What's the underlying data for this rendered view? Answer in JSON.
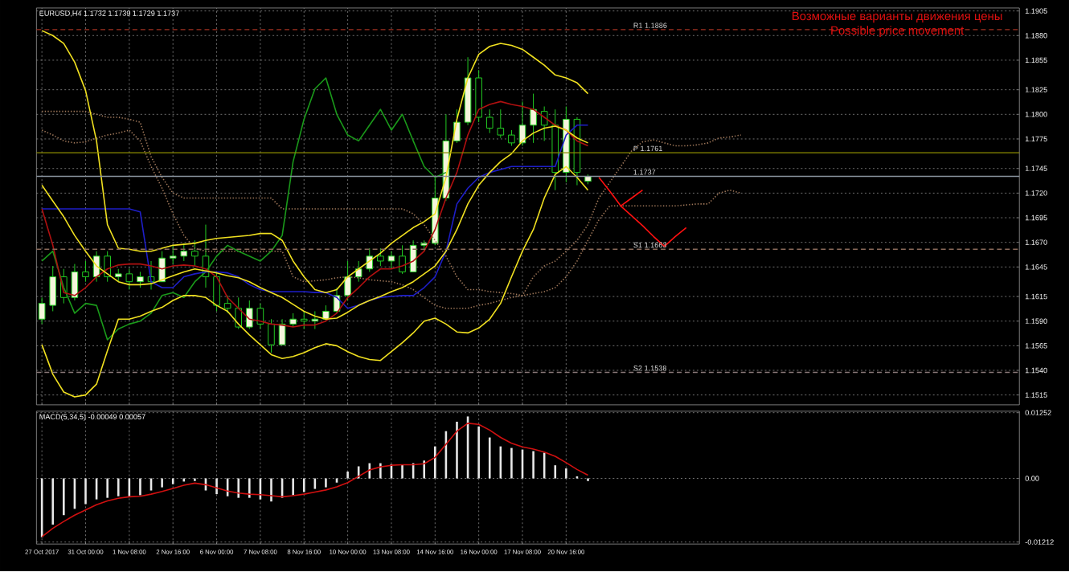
{
  "chart_data": [
    {
      "type": "candlestick",
      "title": "EURUSD,H4  1.1732 1.1739 1.1729 1.1737",
      "categories": [
        null,
        null,
        null,
        null,
        null,
        null,
        null,
        null,
        null,
        null,
        null,
        null,
        null,
        null,
        null,
        null,
        null,
        null,
        null,
        null,
        null,
        null,
        null,
        null,
        null,
        null,
        null,
        null,
        null,
        null,
        null,
        null,
        null,
        null,
        null,
        null,
        null,
        null,
        null,
        null,
        null,
        null,
        null,
        null,
        null,
        null,
        null,
        null,
        null,
        null,
        null,
        null,
        null,
        null,
        null,
        null,
        null,
        null,
        null,
        null,
        null,
        null,
        null,
        null,
        null,
        null,
        null,
        null,
        null,
        null,
        null,
        null,
        null,
        null,
        null,
        null,
        null,
        null,
        null,
        null,
        null,
        null,
        null,
        null,
        null,
        null,
        null,
        null,
        null,
        null
      ],
      "ohlc": [
        [
          1.1592,
          1.1614,
          1.1587,
          1.1608
        ],
        [
          1.1606,
          1.1646,
          1.16,
          1.1635
        ],
        [
          1.1635,
          1.1643,
          1.1608,
          1.1614
        ],
        [
          1.1614,
          1.1648,
          1.1611,
          1.164
        ],
        [
          1.164,
          1.1651,
          1.163,
          1.1635
        ],
        [
          1.1635,
          1.1661,
          1.163,
          1.1656
        ],
        [
          1.1656,
          1.1661,
          1.163,
          1.1635
        ],
        [
          1.1635,
          1.1643,
          1.163,
          1.1638
        ],
        [
          1.1638,
          1.1643,
          1.1622,
          1.163
        ],
        [
          1.163,
          1.164,
          1.1624,
          1.1635
        ],
        [
          1.1635,
          1.1651,
          1.1622,
          1.163
        ],
        [
          1.163,
          1.1661,
          1.163,
          1.1654
        ],
        [
          1.1654,
          1.1667,
          1.1648,
          1.1656
        ],
        [
          1.1656,
          1.1669,
          1.1651,
          1.1661
        ],
        [
          1.1661,
          1.1672,
          1.1646,
          1.1656
        ],
        [
          1.1656,
          1.1688,
          1.1624,
          1.1635
        ],
        [
          1.1635,
          1.164,
          1.16,
          1.1606
        ],
        [
          1.1608,
          1.1616,
          1.1598,
          1.1603
        ],
        [
          1.1603,
          1.1614,
          1.1582,
          1.1584
        ],
        [
          1.1584,
          1.1611,
          1.1582,
          1.1603
        ],
        [
          1.1603,
          1.1608,
          1.1582,
          1.1587
        ],
        [
          1.1587,
          1.1592,
          1.1558,
          1.1566
        ],
        [
          1.1566,
          1.1592,
          1.1566,
          1.1587
        ],
        [
          1.1587,
          1.1598,
          1.1584,
          1.1592
        ],
        [
          1.1592,
          1.16,
          1.1582,
          1.159
        ],
        [
          1.159,
          1.16,
          1.1582,
          1.1592
        ],
        [
          1.1592,
          1.1606,
          1.159,
          1.16
        ],
        [
          1.16,
          1.1624,
          1.1598,
          1.1616
        ],
        [
          1.1616,
          1.1651,
          1.1611,
          1.1635
        ],
        [
          1.1635,
          1.1651,
          1.163,
          1.1643
        ],
        [
          1.1643,
          1.1664,
          1.164,
          1.1656
        ],
        [
          1.1656,
          1.1664,
          1.1646,
          1.1651
        ],
        [
          1.1651,
          1.1661,
          1.1643,
          1.1656
        ],
        [
          1.1656,
          1.1667,
          1.1638,
          1.164
        ],
        [
          1.164,
          1.1672,
          1.164,
          1.1667
        ],
        [
          1.1667,
          1.1672,
          1.1661,
          1.1669
        ],
        [
          1.1669,
          1.1736,
          1.1667,
          1.1715
        ],
        [
          1.1715,
          1.18,
          1.1712,
          1.1773
        ],
        [
          1.1773,
          1.1805,
          1.1771,
          1.1792
        ],
        [
          1.1792,
          1.1858,
          1.1789,
          1.1837
        ],
        [
          1.1837,
          1.1845,
          1.1792,
          1.1797
        ],
        [
          1.1797,
          1.1805,
          1.1781,
          1.1786
        ],
        [
          1.1786,
          1.1805,
          1.1776,
          1.1779
        ],
        [
          1.1779,
          1.1784,
          1.1768,
          1.1771
        ],
        [
          1.1771,
          1.1813,
          1.1768,
          1.1789
        ],
        [
          1.1789,
          1.1821,
          1.1771,
          1.1805
        ],
        [
          1.1803,
          1.1808,
          1.1773,
          1.1789
        ],
        [
          1.1789,
          1.1805,
          1.1723,
          1.1741
        ],
        [
          1.1741,
          1.1808,
          1.1731,
          1.1795
        ],
        [
          1.1795,
          1.1797,
          1.1728,
          1.1741
        ],
        [
          1.1732,
          1.1739,
          1.1729,
          1.1737
        ],
        null,
        null,
        null,
        null,
        null,
        null,
        null,
        null,
        null,
        null,
        null,
        null,
        null,
        null,
        null,
        null,
        null,
        null,
        null,
        null,
        null,
        null,
        null,
        null,
        null,
        null,
        null,
        null,
        null,
        null,
        null,
        null,
        null,
        null,
        null,
        null,
        null,
        null,
        null
      ],
      "series": [
        {
          "type": "line",
          "color": "#a0785a",
          "line_style": "dotted",
          "values": [
            1.1803,
            1.1803,
            1.1803,
            1.1803,
            1.1803,
            1.18,
            1.1797,
            1.1797,
            1.1795,
            1.1792,
            1.1757,
            1.1736,
            1.172,
            1.1715,
            1.1715,
            1.1715,
            1.1715,
            1.1715,
            1.1715,
            1.1715,
            1.1715,
            1.1715,
            1.1704,
            1.1704,
            1.1704,
            1.1704,
            1.1704,
            1.1704,
            1.1704,
            1.1704,
            1.1704,
            1.1704,
            1.1704,
            1.1704,
            1.1699,
            1.1688,
            1.1672,
            1.1656,
            1.1635,
            1.1622,
            1.1622,
            1.162,
            1.1619,
            1.1618,
            1.1616,
            1.1635,
            1.1646,
            1.1651,
            1.1661,
            1.1672,
            1.1688,
            1.1715,
            1.1731,
            1.1747,
            1.1763,
            1.1772,
            1.1774,
            1.1771,
            1.1768,
            1.1768,
            1.1769,
            1.1771,
            1.1776,
            1.1777,
            1.1779,
            null,
            null,
            null,
            null,
            null,
            null,
            null,
            null,
            null,
            null,
            null,
            null,
            null,
            null,
            null,
            null,
            null,
            null,
            null,
            null,
            null,
            null,
            null,
            null,
            null
          ]
        },
        {
          "type": "line",
          "color": "#a0785a",
          "line_style": "dotted",
          "values": [
            1.1784,
            1.1779,
            1.1773,
            1.1771,
            1.1772,
            1.1776,
            1.1779,
            1.1781,
            1.1784,
            1.1773,
            1.1747,
            1.1725,
            1.1699,
            1.1677,
            1.1664,
            1.1661,
            1.1661,
            1.1661,
            1.1661,
            1.1661,
            1.1661,
            1.1661,
            1.1661,
            1.1635,
            1.163,
            1.1631,
            1.1632,
            1.1634,
            1.1635,
            1.1634,
            1.1632,
            1.1631,
            1.163,
            1.1627,
            1.1622,
            1.1614,
            1.1606,
            1.1603,
            1.1603,
            1.1603,
            1.1606,
            1.1608,
            1.1611,
            1.1614,
            1.1616,
            1.1618,
            1.162,
            1.1624,
            1.1635,
            1.1651,
            1.1672,
            1.1693,
            1.1707,
            1.1707,
            1.1707,
            1.1707,
            1.1707,
            1.1707,
            1.1707,
            1.1708,
            1.1709,
            1.1709,
            1.172,
            1.1723,
            1.172,
            null,
            null,
            null,
            null,
            null,
            null,
            null,
            null,
            null,
            null,
            null,
            null,
            null,
            null,
            null,
            null,
            null,
            null,
            null,
            null,
            null,
            null,
            null,
            null,
            null
          ]
        },
        {
          "type": "line",
          "color": "#1a9a1a",
          "values": [
            1.1651,
            1.1661,
            1.1624,
            1.1598,
            1.1608,
            1.1606,
            1.1571,
            1.1582,
            1.1587,
            1.159,
            1.1598,
            1.1616,
            1.1619,
            1.1614,
            1.163,
            1.164,
            1.1656,
            1.1667,
            1.1661,
            1.1656,
            1.1651,
            1.1661,
            1.1677,
            1.1752,
            1.1795,
            1.1826,
            1.1837,
            1.18,
            1.1779,
            1.1773,
            1.1789,
            1.1805,
            1.1784,
            1.18,
            1.1773,
            1.1747,
            1.1736,
            1.1741,
            null,
            null,
            null,
            null,
            null,
            null,
            null,
            null,
            null,
            null,
            null,
            null,
            null,
            null,
            null,
            null,
            null,
            null,
            null,
            null,
            null,
            null,
            null,
            null,
            null,
            null,
            null,
            null,
            null,
            null,
            null,
            null,
            null,
            null,
            null,
            null,
            null,
            null,
            null,
            null,
            null,
            null,
            null,
            null,
            null,
            null,
            null,
            null,
            null,
            null,
            null,
            null
          ]
        },
        {
          "type": "line",
          "color": "#1e1ec8",
          "values": [
            1.1704,
            1.1704,
            1.1704,
            1.1704,
            1.1704,
            1.1704,
            1.1704,
            1.1704,
            1.1704,
            1.1701,
            1.163,
            1.1624,
            1.1624,
            1.1635,
            1.1638,
            1.164,
            1.164,
            1.1639,
            1.1635,
            1.1627,
            1.1622,
            1.162,
            1.162,
            1.162,
            1.162,
            1.1619,
            1.1619,
            1.1614,
            1.1603,
            1.1606,
            1.1611,
            1.1614,
            1.1615,
            1.1616,
            1.1616,
            1.1624,
            1.1635,
            1.1661,
            1.1709,
            1.1725,
            1.1736,
            1.1741,
            1.1744,
            1.1747,
            1.1747,
            1.1747,
            1.1747,
            1.1747,
            1.1779,
            1.1789,
            1.1789,
            null,
            null,
            null,
            null,
            null,
            null,
            null,
            null,
            null,
            null,
            null,
            null,
            null,
            null,
            null,
            null,
            null,
            null,
            null,
            null,
            null,
            null,
            null,
            null,
            null,
            null,
            null,
            null,
            null,
            null,
            null,
            null,
            null,
            null,
            null,
            null,
            null,
            null,
            null
          ]
        },
        {
          "type": "line",
          "color": "#b01010",
          "values": [
            1.1704,
            1.1667,
            1.1619,
            1.1616,
            1.1624,
            1.1635,
            1.1643,
            1.1647,
            1.1648,
            1.1648,
            1.1646,
            1.1643,
            1.1646,
            1.1647,
            1.1646,
            1.1643,
            1.1635,
            1.1614,
            1.1603,
            1.1592,
            1.159,
            1.1587,
            1.1586,
            1.1584,
            1.1586,
            1.1586,
            1.159,
            1.1598,
            1.1614,
            1.1624,
            1.1635,
            1.1643,
            1.1643,
            1.1646,
            1.1651,
            1.1661,
            1.1683,
            1.1715,
            1.1741,
            1.1779,
            1.1805,
            1.181,
            1.1813,
            1.181,
            1.1808,
            1.1805,
            1.1797,
            1.1789,
            1.1784,
            1.1773,
            1.1768,
            null,
            null,
            null,
            null,
            null,
            null,
            null,
            null,
            null,
            null,
            null,
            null,
            null,
            null,
            null,
            null,
            null,
            null,
            null,
            null,
            null,
            null,
            null,
            null,
            null,
            null,
            null,
            null,
            null,
            null,
            null,
            null,
            null,
            null,
            null,
            null,
            null,
            null,
            null
          ]
        },
        {
          "type": "line",
          "color": "#f0e020",
          "values": [
            1.1885,
            1.188,
            1.1872,
            1.1853,
            1.1824,
            1.1773,
            1.1688,
            1.1664,
            1.1663,
            1.1661,
            1.1661,
            1.1664,
            1.1667,
            1.1668,
            1.1669,
            1.1672,
            1.1674,
            1.1675,
            1.1676,
            1.1677,
            1.1679,
            1.1679,
            1.1672,
            1.1651,
            1.1635,
            1.1622,
            1.1619,
            1.1622,
            1.1635,
            1.1643,
            1.1651,
            1.1659,
            1.1669,
            1.1677,
            1.1685,
            1.1691,
            1.1699,
            1.1736,
            1.1795,
            1.1837,
            1.1861,
            1.1869,
            1.1872,
            1.187,
            1.1866,
            1.1858,
            1.185,
            1.184,
            1.1837,
            1.1832,
            1.1821,
            null,
            null,
            null,
            null,
            null,
            null,
            null,
            null,
            null,
            null,
            null,
            null,
            null,
            null,
            null,
            null,
            null,
            null,
            null,
            null,
            null,
            null,
            null,
            null,
            null,
            null,
            null,
            null,
            null,
            null,
            null,
            null,
            null,
            null,
            null,
            null,
            null,
            null,
            null
          ]
        },
        {
          "type": "line",
          "color": "#f0e020",
          "values": [
            1.1728,
            1.1712,
            1.1696,
            1.1677,
            1.1661,
            1.1646,
            1.1638,
            1.163,
            1.1627,
            1.1627,
            1.1628,
            1.1632,
            1.1636,
            1.164,
            1.1643,
            1.1641,
            1.1639,
            1.1636,
            1.1634,
            1.163,
            1.1624,
            1.1619,
            1.1614,
            1.1607,
            1.16,
            1.1595,
            1.1592,
            1.1593,
            1.1599,
            1.1606,
            1.1611,
            1.1615,
            1.162,
            1.1624,
            1.163,
            1.1638,
            1.1646,
            1.1661,
            1.1683,
            1.1709,
            1.1728,
            1.1741,
            1.1752,
            1.176,
            1.1773,
            1.1781,
            1.1786,
            1.1788,
            1.1784,
            1.1776,
            1.1771,
            null,
            null,
            null,
            null,
            null,
            null,
            null,
            null,
            null,
            null,
            null,
            null,
            null,
            null,
            null,
            null,
            null,
            null,
            null,
            null,
            null,
            null,
            null,
            null,
            null,
            null,
            null,
            null,
            null,
            null,
            null,
            null,
            null,
            null,
            null,
            null,
            null,
            null,
            null
          ]
        },
        {
          "type": "line",
          "color": "#f0e020",
          "values": [
            1.1566,
            1.1536,
            1.1518,
            1.1513,
            1.1515,
            1.1526,
            1.156,
            1.1592,
            1.1592,
            1.1595,
            1.16,
            1.1604,
            1.1611,
            1.1616,
            1.1616,
            1.1614,
            1.1606,
            1.16,
            1.1587,
            1.1576,
            1.1566,
            1.1556,
            1.1552,
            1.1554,
            1.1558,
            1.1563,
            1.1567,
            1.1565,
            1.1559,
            1.1554,
            1.1551,
            1.155,
            1.1559,
            1.1568,
            1.1578,
            1.159,
            1.1593,
            1.1587,
            1.1579,
            1.1578,
            1.1583,
            1.1592,
            1.1608,
            1.1635,
            1.1661,
            1.1683,
            1.1715,
            1.1739,
            1.1747,
            1.1736,
            1.1723,
            null,
            null,
            null,
            null,
            null,
            null,
            null,
            null,
            null,
            null,
            null,
            null,
            null,
            null,
            null,
            null,
            null,
            null,
            null,
            null,
            null,
            null,
            null,
            null,
            null,
            null,
            null,
            null,
            null,
            null,
            null,
            null,
            null,
            null,
            null,
            null,
            null,
            null,
            null
          ]
        },
        {
          "type": "line",
          "color": "#ff1010",
          "values": [
            null,
            null,
            null,
            null,
            null,
            null,
            null,
            null,
            null,
            null,
            null,
            null,
            null,
            null,
            null,
            null,
            null,
            null,
            null,
            null,
            null,
            null,
            null,
            null,
            null,
            null,
            null,
            null,
            null,
            null,
            null,
            null,
            null,
            null,
            null,
            null,
            null,
            null,
            null,
            null,
            null,
            null,
            null,
            null,
            null,
            null,
            null,
            null,
            null,
            null,
            null,
            1.1736,
            1.1722,
            1.1707,
            1.1715,
            1.1723,
            null,
            null,
            null,
            null,
            null,
            null,
            null,
            null,
            null,
            null,
            null,
            null,
            null,
            null,
            null,
            null,
            null,
            null,
            null,
            null,
            null,
            null,
            null,
            null,
            null,
            null,
            null,
            null,
            null,
            null,
            null,
            null,
            null,
            null
          ]
        },
        {
          "type": "line",
          "color": "#ff1010",
          "values": [
            null,
            null,
            null,
            null,
            null,
            null,
            null,
            null,
            null,
            null,
            null,
            null,
            null,
            null,
            null,
            null,
            null,
            null,
            null,
            null,
            null,
            null,
            null,
            null,
            null,
            null,
            null,
            null,
            null,
            null,
            null,
            null,
            null,
            null,
            null,
            null,
            null,
            null,
            null,
            null,
            null,
            null,
            null,
            null,
            null,
            null,
            null,
            null,
            null,
            null,
            null,
            null,
            null,
            1.1707,
            1.1697,
            1.1687,
            1.1676,
            1.1666,
            1.1676,
            1.1685,
            null,
            null,
            null,
            null,
            null,
            null,
            null,
            null,
            null,
            null,
            null,
            null,
            null,
            null,
            null,
            null,
            null,
            null,
            null,
            null,
            null,
            null,
            null,
            null,
            null,
            null,
            null,
            null,
            null,
            null
          ]
        }
      ],
      "ylim": [
        1.1505,
        1.1908
      ],
      "yticks": [
        {
          "value": 1.1515,
          "label": "1.1515"
        },
        {
          "value": 1.154,
          "label": "1.1540"
        },
        {
          "value": 1.1565,
          "label": "1.1565"
        },
        {
          "value": 1.159,
          "label": "1.1590"
        },
        {
          "value": 1.1615,
          "label": "1.1615"
        },
        {
          "value": 1.1645,
          "label": "1.1645"
        },
        {
          "value": 1.167,
          "label": "1.1670"
        },
        {
          "value": 1.1695,
          "label": "1.1695"
        },
        {
          "value": 1.172,
          "label": "1.1720"
        },
        {
          "value": 1.1745,
          "label": "1.1745"
        },
        {
          "value": 1.1775,
          "label": "1.1775"
        },
        {
          "value": 1.18,
          "label": "1.1800"
        },
        {
          "value": 1.1825,
          "label": "1.1825"
        },
        {
          "value": 1.1855,
          "label": "1.1855"
        },
        {
          "value": 1.188,
          "label": "1.1880"
        },
        {
          "value": 1.1905,
          "label": "1.1905"
        }
      ],
      "ref_lines": [
        {
          "axis": "y",
          "value": 1.1886,
          "label": "R1  1.1886",
          "color": "#a03020",
          "line_style": "dashed"
        },
        {
          "axis": "y",
          "value": 1.1761,
          "label": "P  1.1761",
          "color": "#8c8c00",
          "line_style": "solid"
        },
        {
          "axis": "y",
          "value": 1.1737,
          "label": "1.1737",
          "color": "#8a95a0",
          "line_style": "solid"
        },
        {
          "axis": "y",
          "value": 1.1663,
          "label": "S1  1.1663",
          "color": "#8a6a5a",
          "line_style": "dashed"
        },
        {
          "axis": "y",
          "value": 1.1538,
          "label": "S2  1.1538",
          "color": "#8a7a7a",
          "line_style": "dashed"
        }
      ],
      "annotations": [
        "Возможные варианты движения цены",
        "Possible price movement"
      ],
      "grid": true,
      "tick_labels": "y"
    },
    {
      "type": "bar",
      "title": "MACD(5,34,5) -0.00049 0.00057",
      "categories": [
        "27 Oct 2017",
        null,
        null,
        null,
        "31 Oct 00:00",
        null,
        null,
        null,
        "1 Nov 08:00",
        null,
        null,
        null,
        "2 Nov 16:00",
        null,
        null,
        null,
        "6 Nov 00:00",
        null,
        null,
        null,
        "7 Nov 08:00",
        null,
        null,
        null,
        "8 Nov 16:00",
        null,
        null,
        null,
        "10 Nov 00:00",
        null,
        null,
        null,
        "13 Nov 08:00",
        null,
        null,
        null,
        "14 Nov 16:00",
        null,
        null,
        null,
        "16 Nov 00:00",
        null,
        null,
        null,
        "17 Nov 08:00",
        null,
        null,
        null,
        "20 Nov 16:00",
        null,
        null,
        null,
        null,
        null,
        null,
        null,
        null,
        null,
        null,
        null,
        null,
        null,
        null,
        null,
        null,
        null,
        null,
        null,
        null,
        null,
        null,
        null,
        null,
        null,
        null,
        null,
        null,
        null,
        null,
        null,
        null,
        null,
        null,
        null,
        null,
        null,
        null,
        null,
        null,
        null
      ],
      "series": [
        {
          "type": "bar",
          "color": "#e8e8e8",
          "values": [
            -0.0112,
            -0.0088,
            -0.007,
            -0.0058,
            -0.0049,
            -0.004,
            -0.0037,
            -0.0034,
            -0.0034,
            -0.0032,
            -0.0023,
            -0.0017,
            -0.0011,
            -0.0006,
            -0.0005,
            -0.0023,
            -0.003,
            -0.0034,
            -0.0037,
            -0.0037,
            -0.004,
            -0.0044,
            -0.0037,
            -0.0032,
            -0.0026,
            -0.002,
            -0.0017,
            -0.0008,
            0.0013,
            0.0023,
            0.0029,
            0.0029,
            0.0027,
            0.0026,
            0.0029,
            0.0034,
            0.0061,
            0.009,
            0.0108,
            0.0118,
            0.0099,
            0.0078,
            0.0061,
            0.0058,
            0.0055,
            0.0052,
            0.0049,
            0.0025,
            0.0019,
            0.0004,
            -0.0005,
            null,
            null,
            null,
            null,
            null,
            null,
            null,
            null,
            null,
            null,
            null,
            null,
            null,
            null,
            null,
            null,
            null,
            null,
            null,
            null,
            null,
            null,
            null,
            null,
            null,
            null,
            null,
            null,
            null,
            null,
            null,
            null,
            null,
            null,
            null,
            null,
            null,
            null,
            null
          ]
        },
        {
          "type": "line",
          "color": "#d01010",
          "values": [
            -0.0111,
            -0.0095,
            -0.0082,
            -0.007,
            -0.006,
            -0.005,
            -0.0043,
            -0.0038,
            -0.0035,
            -0.0034,
            -0.003,
            -0.0025,
            -0.0019,
            -0.0013,
            -0.0009,
            -0.0012,
            -0.0018,
            -0.0024,
            -0.0028,
            -0.003,
            -0.0031,
            -0.0033,
            -0.0035,
            -0.0033,
            -0.003,
            -0.0026,
            -0.0022,
            -0.0016,
            -0.0008,
            0.0004,
            0.0016,
            0.0022,
            0.0025,
            0.0026,
            0.0026,
            0.0028,
            0.004,
            0.0065,
            0.009,
            0.0105,
            0.0103,
            0.0092,
            0.0078,
            0.0067,
            0.006,
            0.0056,
            0.005,
            0.0042,
            0.003,
            0.0017,
            0.0006,
            null,
            null,
            null,
            null,
            null,
            null,
            null,
            null,
            null,
            null,
            null,
            null,
            null,
            null,
            null,
            null,
            null,
            null,
            null,
            null,
            null,
            null,
            null,
            null,
            null,
            null,
            null,
            null,
            null,
            null,
            null,
            null,
            null,
            null,
            null,
            null,
            null,
            null,
            null
          ]
        }
      ],
      "ylim": [
        -0.0125,
        0.0128
      ],
      "yticks": [
        0.01252,
        {
          "value": 0,
          "label": "0.00"
        },
        -0.01212
      ],
      "grid": true
    }
  ]
}
